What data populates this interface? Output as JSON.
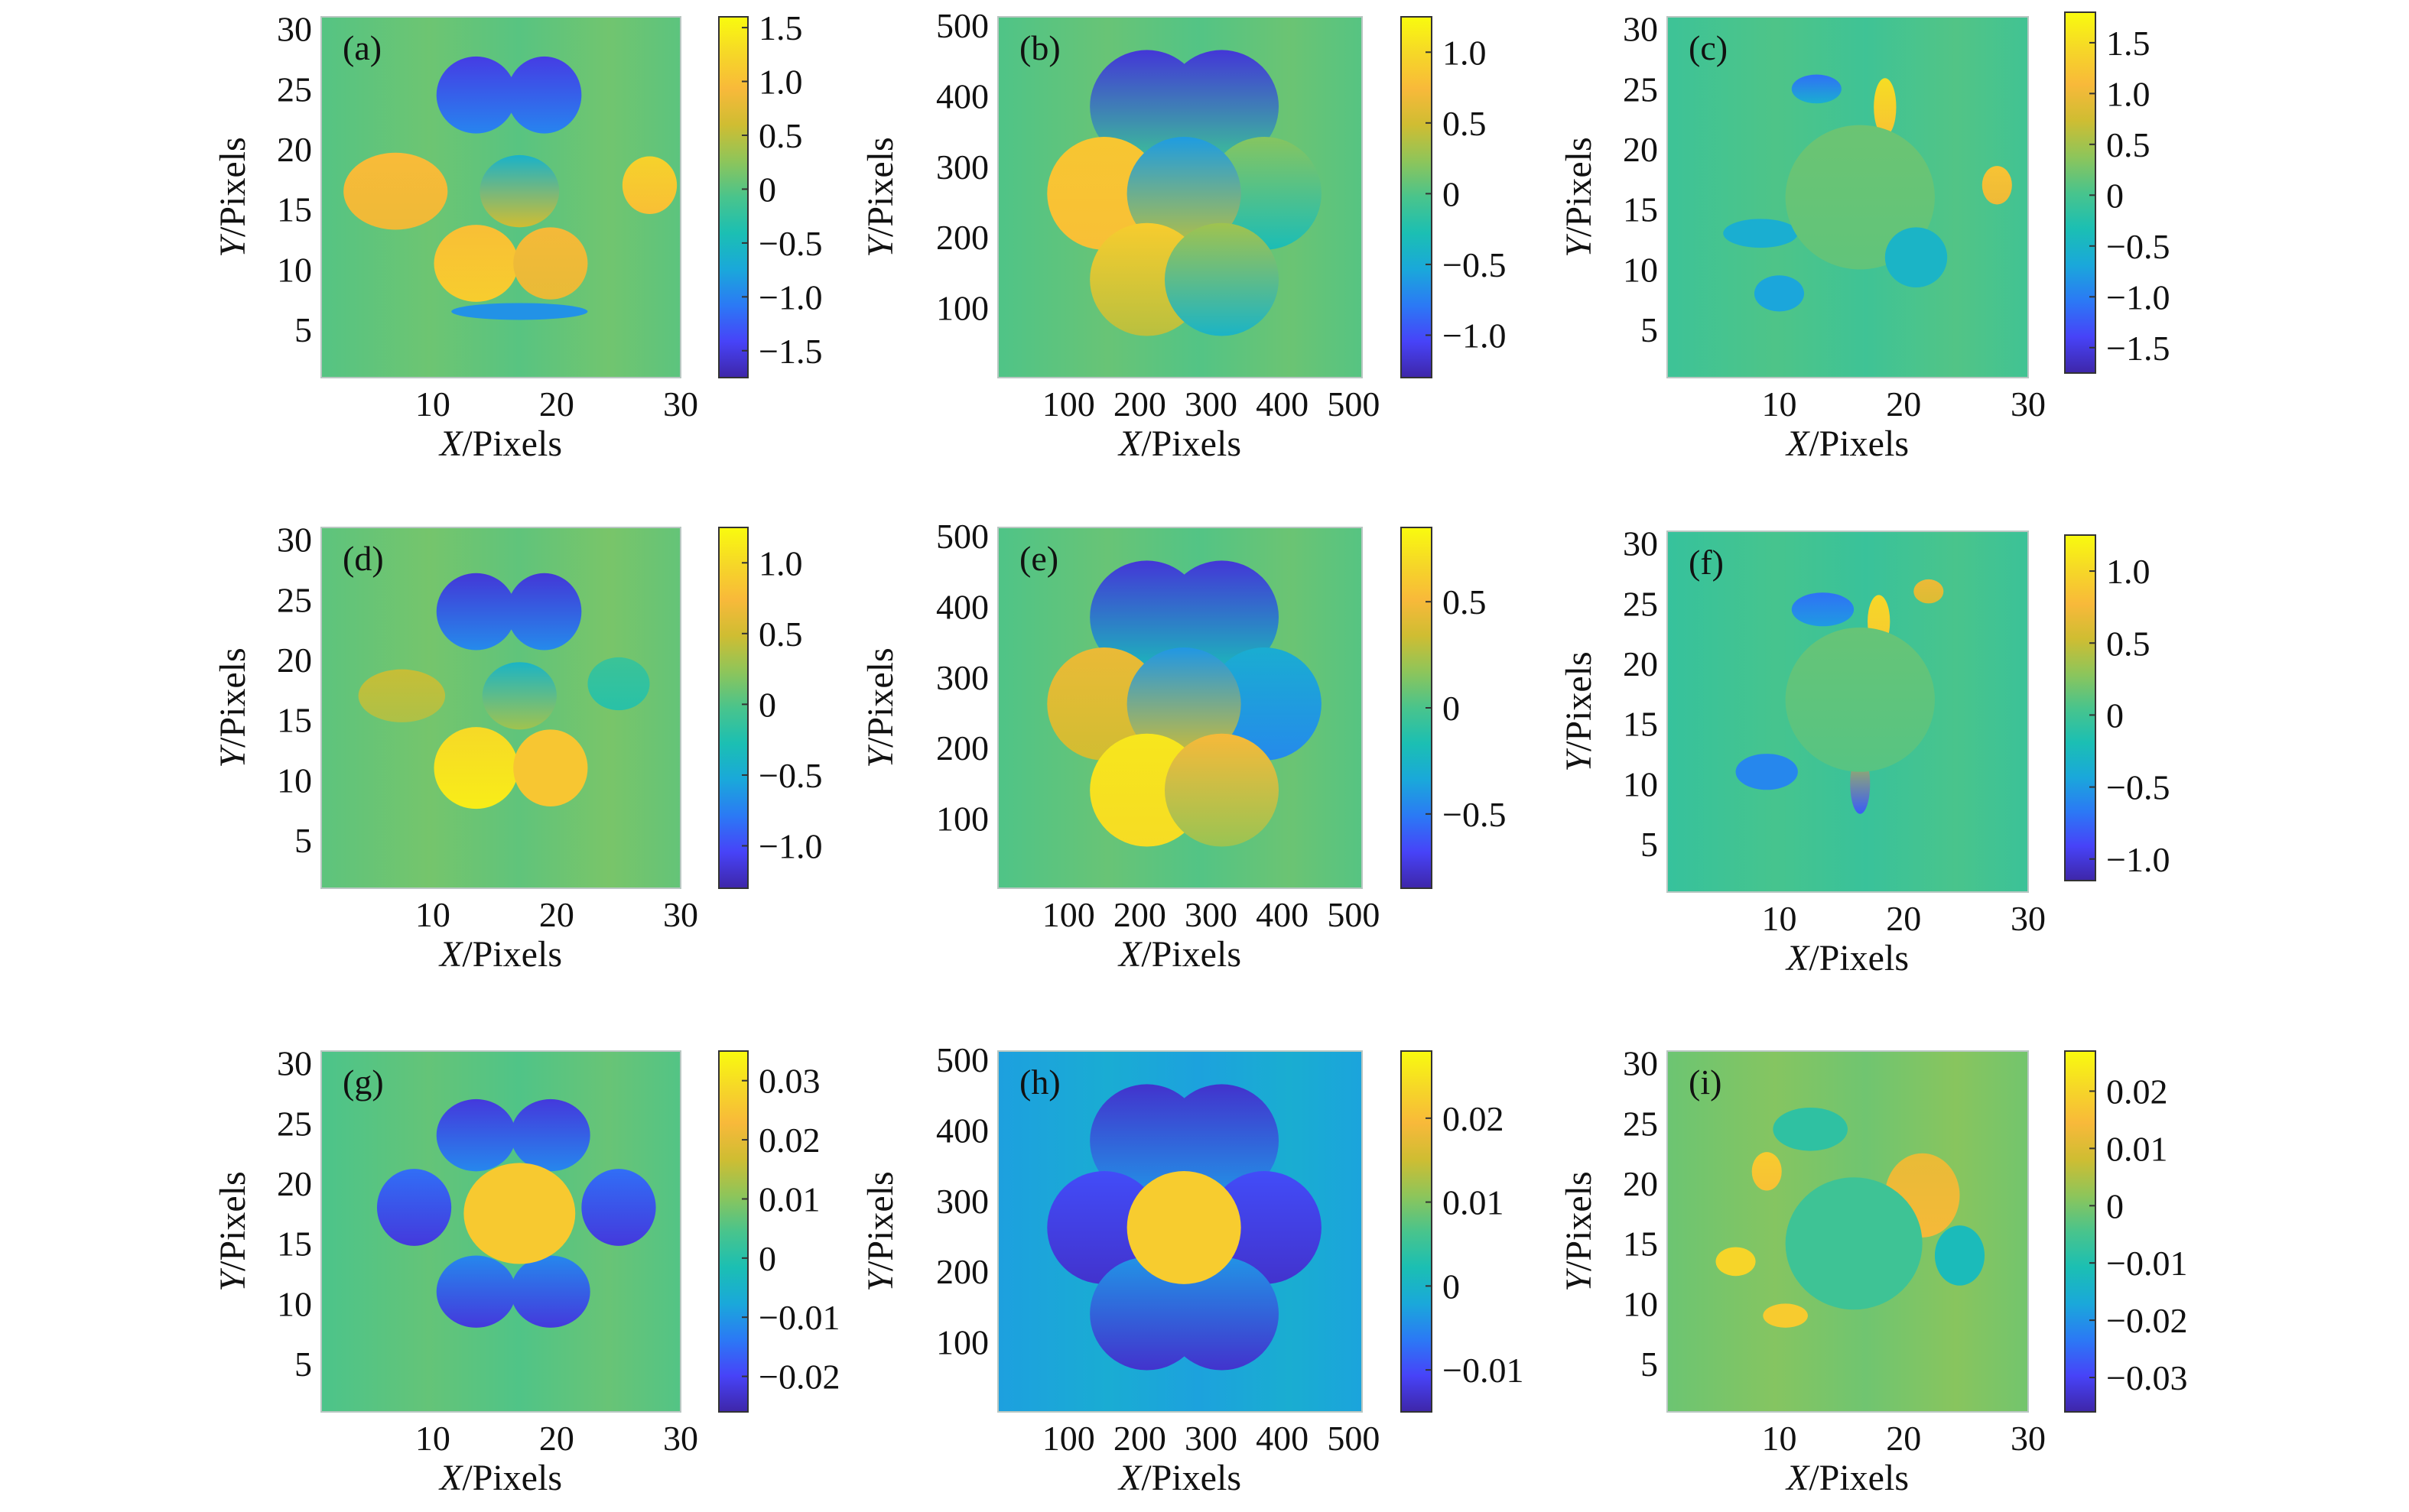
{
  "figure": {
    "colormap": "parula",
    "colormap_stops": [
      "#3e26a8",
      "#4743f8",
      "#2b79f5",
      "#1aa8da",
      "#1bbfb3",
      "#49c48c",
      "#8ec55a",
      "#cfbd32",
      "#f8b93a",
      "#f6d827",
      "#f9fb0e"
    ],
    "background_colors": {
      "interior_value_left_columns": 0.0,
      "description": "smooth colour fields with blob-shaped regions"
    }
  },
  "chart_data": [
    {
      "id": "a",
      "type": "heatmap",
      "panel_label": "(a)",
      "xlabel_var": "X",
      "xlabel_unit": "/Pixels",
      "ylabel_var": "Y",
      "ylabel_unit": "/Pixels",
      "xlim": [
        1,
        30
      ],
      "ylim": [
        1,
        31
      ],
      "x_ticks": [
        10,
        20,
        30
      ],
      "x_tick_labels": [
        "10",
        "20",
        "30"
      ],
      "y_ticks": [
        5,
        10,
        15,
        20,
        25,
        30
      ],
      "y_tick_labels": [
        "5",
        "10",
        "15",
        "20",
        "25",
        "30"
      ],
      "clim": [
        -1.75,
        1.6
      ],
      "colorbar_ticks": [
        1.5,
        1.0,
        0.5,
        0,
        -0.5,
        -1.0,
        -1.5
      ],
      "colorbar_tick_labels": [
        "1.5",
        "1.0",
        "0.5",
        "0",
        "−0.5",
        "−1.0",
        "−1.5"
      ],
      "background_value": 0.05,
      "blobs": [
        {
          "cx": 13.5,
          "cy": 24.5,
          "rx": 3.2,
          "ry": 3.2,
          "value_top": -1.5,
          "value_bottom": -1.0
        },
        {
          "cx": 19.0,
          "cy": 24.5,
          "rx": 3.0,
          "ry": 3.2,
          "value_top": -1.5,
          "value_bottom": -1.0
        },
        {
          "cx": 7.0,
          "cy": 16.5,
          "rx": 4.2,
          "ry": 3.2,
          "value_top": 0.95,
          "value_bottom": 0.85
        },
        {
          "cx": 27.5,
          "cy": 17.0,
          "rx": 2.2,
          "ry": 2.4,
          "value_top": 1.2,
          "value_bottom": 1.0
        },
        {
          "cx": 13.5,
          "cy": 10.5,
          "rx": 3.4,
          "ry": 3.2,
          "value_top": 1.0,
          "value_bottom": 1.15
        },
        {
          "cx": 19.5,
          "cy": 10.5,
          "rx": 3.0,
          "ry": 3.0,
          "value_top": 0.9,
          "value_bottom": 0.8
        },
        {
          "cx": 17.0,
          "cy": 16.5,
          "rx": 3.2,
          "ry": 3.0,
          "value_top": -0.6,
          "value_bottom": 0.6
        },
        {
          "cx": 17.0,
          "cy": 6.5,
          "rx": 5.5,
          "ry": 0.7,
          "value_top": -0.9,
          "value_bottom": -0.9
        }
      ]
    },
    {
      "id": "b",
      "type": "heatmap",
      "panel_label": "(b)",
      "xlabel_var": "X",
      "xlabel_unit": "/Pixels",
      "ylabel_var": "Y",
      "ylabel_unit": "/Pixels",
      "xlim": [
        1,
        512
      ],
      "ylim": [
        1,
        512
      ],
      "x_ticks": [
        100,
        200,
        300,
        400,
        500
      ],
      "x_tick_labels": [
        "100",
        "200",
        "300",
        "400",
        "500"
      ],
      "y_ticks": [
        100,
        200,
        300,
        400,
        500
      ],
      "y_tick_labels": [
        "100",
        "200",
        "300",
        "400",
        "500"
      ],
      "clim": [
        -1.3,
        1.25
      ],
      "colorbar_ticks": [
        1.0,
        0.5,
        0,
        -0.5,
        -1.0
      ],
      "colorbar_tick_labels": [
        "1.0",
        "0.5",
        "0",
        "−0.5",
        "−1.0"
      ],
      "background_value": 0.05,
      "blobs": [
        {
          "cx": 210,
          "cy": 385,
          "rx": 80,
          "ry": 80,
          "value_top": -1.15,
          "value_bottom": -0.1
        },
        {
          "cx": 315,
          "cy": 385,
          "rx": 80,
          "ry": 80,
          "value_top": -1.15,
          "value_bottom": -0.1
        },
        {
          "cx": 150,
          "cy": 262,
          "rx": 80,
          "ry": 80,
          "value_top": 0.85,
          "value_bottom": 0.8
        },
        {
          "cx": 375,
          "cy": 262,
          "rx": 80,
          "ry": 80,
          "value_top": 0.2,
          "value_bottom": -0.3
        },
        {
          "cx": 262,
          "cy": 262,
          "rx": 80,
          "ry": 80,
          "value_top": -0.6,
          "value_bottom": 0.4
        },
        {
          "cx": 210,
          "cy": 140,
          "rx": 80,
          "ry": 80,
          "value_top": 0.9,
          "value_bottom": 0.4
        },
        {
          "cx": 315,
          "cy": 140,
          "rx": 80,
          "ry": 80,
          "value_top": 0.3,
          "value_bottom": -0.4
        }
      ]
    },
    {
      "id": "c",
      "type": "heatmap",
      "panel_label": "(c)",
      "xlabel_var": "X",
      "xlabel_unit": "/Pixels",
      "ylabel_var": "Y",
      "ylabel_unit": "/Pixels",
      "xlim": [
        1,
        30
      ],
      "ylim": [
        1,
        31
      ],
      "x_ticks": [
        10,
        20,
        30
      ],
      "x_tick_labels": [
        "10",
        "20",
        "30"
      ],
      "y_ticks": [
        5,
        10,
        15,
        20,
        25,
        30
      ],
      "y_tick_labels": [
        "5",
        "10",
        "15",
        "20",
        "25",
        "30"
      ],
      "clim": [
        -1.75,
        1.8
      ],
      "colorbar_ticks": [
        1.5,
        1.0,
        0.5,
        0,
        -0.5,
        -1.0,
        -1.5
      ],
      "colorbar_tick_labels": [
        "1.5",
        "1.0",
        "0.5",
        "0",
        "−0.5",
        "−1.0",
        "−1.5"
      ],
      "background_value": 0.0,
      "blobs": [
        {
          "cx": 13.0,
          "cy": 25.0,
          "rx": 2.0,
          "ry": 1.2,
          "value_top": -1.1,
          "value_bottom": -0.6
        },
        {
          "cx": 18.5,
          "cy": 23.5,
          "rx": 0.9,
          "ry": 2.4,
          "value_top": 1.5,
          "value_bottom": 1.2
        },
        {
          "cx": 27.5,
          "cy": 17.0,
          "rx": 1.2,
          "ry": 1.6,
          "value_top": 1.2,
          "value_bottom": 1.0
        },
        {
          "cx": 8.5,
          "cy": 13.0,
          "rx": 3.0,
          "ry": 1.2,
          "value_top": -0.6,
          "value_bottom": -0.6
        },
        {
          "cx": 10.0,
          "cy": 8.0,
          "rx": 2.0,
          "ry": 1.5,
          "value_top": -0.7,
          "value_bottom": -0.7
        },
        {
          "cx": 16.5,
          "cy": 16.0,
          "rx": 6.0,
          "ry": 6.0,
          "value_top": 0.2,
          "value_bottom": 0.15
        },
        {
          "cx": 21.0,
          "cy": 11.0,
          "rx": 2.5,
          "ry": 2.5,
          "value_top": -0.5,
          "value_bottom": -0.5
        }
      ]
    },
    {
      "id": "d",
      "type": "heatmap",
      "panel_label": "(d)",
      "xlabel_var": "X",
      "xlabel_unit": "/Pixels",
      "ylabel_var": "Y",
      "ylabel_unit": "/Pixels",
      "xlim": [
        1,
        30
      ],
      "ylim": [
        1,
        31
      ],
      "x_ticks": [
        10,
        20,
        30
      ],
      "x_tick_labels": [
        "10",
        "20",
        "30"
      ],
      "y_ticks": [
        5,
        10,
        15,
        20,
        25,
        30
      ],
      "y_tick_labels": [
        "5",
        "10",
        "15",
        "20",
        "25",
        "30"
      ],
      "clim": [
        -1.3,
        1.25
      ],
      "colorbar_ticks": [
        1.0,
        0.5,
        0,
        -0.5,
        -1.0
      ],
      "colorbar_tick_labels": [
        "1.0",
        "0.5",
        "0",
        "−0.5",
        "−1.0"
      ],
      "background_value": 0.1,
      "blobs": [
        {
          "cx": 13.5,
          "cy": 24.0,
          "rx": 3.2,
          "ry": 3.2,
          "value_top": -1.15,
          "value_bottom": -0.7
        },
        {
          "cx": 19.0,
          "cy": 24.0,
          "rx": 3.0,
          "ry": 3.2,
          "value_top": -1.15,
          "value_bottom": -0.7
        },
        {
          "cx": 7.5,
          "cy": 17.0,
          "rx": 3.5,
          "ry": 2.2,
          "value_top": 0.45,
          "value_bottom": 0.35
        },
        {
          "cx": 25.0,
          "cy": 18.0,
          "rx": 2.5,
          "ry": 2.2,
          "value_top": -0.1,
          "value_bottom": -0.2
        },
        {
          "cx": 13.5,
          "cy": 11.0,
          "rx": 3.4,
          "ry": 3.4,
          "value_top": 1.0,
          "value_bottom": 1.15
        },
        {
          "cx": 19.5,
          "cy": 11.0,
          "rx": 3.0,
          "ry": 3.2,
          "value_top": 0.85,
          "value_bottom": 0.85
        },
        {
          "cx": 17.0,
          "cy": 17.0,
          "rx": 3.0,
          "ry": 2.8,
          "value_top": -0.4,
          "value_bottom": 0.3
        }
      ]
    },
    {
      "id": "e",
      "type": "heatmap",
      "panel_label": "(e)",
      "xlabel_var": "X",
      "xlabel_unit": "/Pixels",
      "ylabel_var": "Y",
      "ylabel_unit": "/Pixels",
      "xlim": [
        1,
        512
      ],
      "ylim": [
        1,
        512
      ],
      "x_ticks": [
        100,
        200,
        300,
        400,
        500
      ],
      "x_tick_labels": [
        "100",
        "200",
        "300",
        "400",
        "500"
      ],
      "y_ticks": [
        100,
        200,
        300,
        400,
        500
      ],
      "y_tick_labels": [
        "100",
        "200",
        "300",
        "400",
        "500"
      ],
      "clim": [
        -0.85,
        0.85
      ],
      "colorbar_ticks": [
        0.5,
        0,
        -0.5
      ],
      "colorbar_tick_labels": [
        "0.5",
        "0",
        "−0.5"
      ],
      "background_value": 0.05,
      "blobs": [
        {
          "cx": 210,
          "cy": 385,
          "rx": 80,
          "ry": 80,
          "value_top": -0.75,
          "value_bottom": -0.2
        },
        {
          "cx": 315,
          "cy": 385,
          "rx": 80,
          "ry": 80,
          "value_top": -0.75,
          "value_bottom": -0.2
        },
        {
          "cx": 150,
          "cy": 262,
          "rx": 80,
          "ry": 80,
          "value_top": 0.45,
          "value_bottom": 0.35
        },
        {
          "cx": 375,
          "cy": 262,
          "rx": 80,
          "ry": 80,
          "value_top": -0.3,
          "value_bottom": -0.45
        },
        {
          "cx": 262,
          "cy": 262,
          "rx": 80,
          "ry": 80,
          "value_top": -0.4,
          "value_bottom": 0.35
        },
        {
          "cx": 210,
          "cy": 140,
          "rx": 80,
          "ry": 80,
          "value_top": 0.75,
          "value_bottom": 0.7
        },
        {
          "cx": 315,
          "cy": 140,
          "rx": 80,
          "ry": 80,
          "value_top": 0.5,
          "value_bottom": 0.2
        }
      ]
    },
    {
      "id": "f",
      "type": "heatmap",
      "panel_label": "(f)",
      "xlabel_var": "X",
      "xlabel_unit": "/Pixels",
      "ylabel_var": "Y",
      "ylabel_unit": "/Pixels",
      "xlim": [
        1,
        30
      ],
      "ylim": [
        1,
        31
      ],
      "x_ticks": [
        10,
        20,
        30
      ],
      "x_tick_labels": [
        "10",
        "20",
        "30"
      ],
      "y_ticks": [
        5,
        10,
        15,
        20,
        25,
        30
      ],
      "y_tick_labels": [
        "5",
        "10",
        "15",
        "20",
        "25",
        "30"
      ],
      "clim": [
        -1.15,
        1.25
      ],
      "colorbar_ticks": [
        1.0,
        0.5,
        0,
        -0.5,
        -1.0
      ],
      "colorbar_tick_labels": [
        "1.0",
        "0.5",
        "0",
        "−0.5",
        "−1.0"
      ],
      "background_value": 0.0,
      "blobs": [
        {
          "cx": 13.5,
          "cy": 24.5,
          "rx": 2.5,
          "ry": 1.4,
          "value_top": -0.7,
          "value_bottom": -0.5
        },
        {
          "cx": 18.0,
          "cy": 23.5,
          "rx": 0.9,
          "ry": 2.2,
          "value_top": 1.0,
          "value_bottom": 0.9
        },
        {
          "cx": 22.0,
          "cy": 26.0,
          "rx": 1.2,
          "ry": 1.0,
          "value_top": 0.7,
          "value_bottom": 0.6
        },
        {
          "cx": 16.5,
          "cy": 10.0,
          "rx": 0.8,
          "ry": 2.5,
          "value_top": 0.4,
          "value_bottom": -0.8
        },
        {
          "cx": 9.0,
          "cy": 11.0,
          "rx": 2.5,
          "ry": 1.5,
          "value_top": -0.6,
          "value_bottom": -0.6
        },
        {
          "cx": 16.5,
          "cy": 17.0,
          "rx": 6.0,
          "ry": 6.0,
          "value_top": 0.15,
          "value_bottom": 0.1
        }
      ]
    },
    {
      "id": "g",
      "type": "heatmap",
      "panel_label": "(g)",
      "xlabel_var": "X",
      "xlabel_unit": "/Pixels",
      "ylabel_var": "Y",
      "ylabel_unit": "/Pixels",
      "xlim": [
        1,
        30
      ],
      "ylim": [
        1,
        31
      ],
      "x_ticks": [
        10,
        20,
        30
      ],
      "x_tick_labels": [
        "10",
        "20",
        "30"
      ],
      "y_ticks": [
        5,
        10,
        15,
        20,
        25,
        30
      ],
      "y_tick_labels": [
        "5",
        "10",
        "15",
        "20",
        "25",
        "30"
      ],
      "clim": [
        -0.026,
        0.035
      ],
      "colorbar_ticks": [
        0.03,
        0.02,
        0.01,
        0,
        -0.01,
        -0.02
      ],
      "colorbar_tick_labels": [
        "0.03",
        "0.02",
        "0.01",
        "0",
        "−0.01",
        "−0.02"
      ],
      "background_value": 0.006,
      "blobs": [
        {
          "cx": 13.5,
          "cy": 24.0,
          "rx": 3.2,
          "ry": 3.0,
          "value_top": -0.022,
          "value_bottom": -0.012
        },
        {
          "cx": 19.5,
          "cy": 24.0,
          "rx": 3.2,
          "ry": 3.0,
          "value_top": -0.022,
          "value_bottom": -0.012
        },
        {
          "cx": 8.5,
          "cy": 18.0,
          "rx": 3.0,
          "ry": 3.2,
          "value_top": -0.015,
          "value_bottom": -0.022
        },
        {
          "cx": 25.0,
          "cy": 18.0,
          "rx": 3.0,
          "ry": 3.2,
          "value_top": -0.015,
          "value_bottom": -0.022
        },
        {
          "cx": 13.5,
          "cy": 11.0,
          "rx": 3.2,
          "ry": 3.0,
          "value_top": -0.012,
          "value_bottom": -0.022
        },
        {
          "cx": 19.5,
          "cy": 11.0,
          "rx": 3.2,
          "ry": 3.0,
          "value_top": -0.012,
          "value_bottom": -0.022
        },
        {
          "cx": 17.0,
          "cy": 17.5,
          "rx": 4.5,
          "ry": 4.2,
          "value_top": 0.026,
          "value_bottom": 0.026
        }
      ]
    },
    {
      "id": "h",
      "type": "heatmap",
      "panel_label": "(h)",
      "xlabel_var": "X",
      "xlabel_unit": "/Pixels",
      "ylabel_var": "Y",
      "ylabel_unit": "/Pixels",
      "xlim": [
        1,
        512
      ],
      "ylim": [
        1,
        512
      ],
      "x_ticks": [
        100,
        200,
        300,
        400,
        500
      ],
      "x_tick_labels": [
        "100",
        "200",
        "300",
        "400",
        "500"
      ],
      "y_ticks": [
        100,
        200,
        300,
        400,
        500
      ],
      "y_tick_labels": [
        "100",
        "200",
        "300",
        "400",
        "500"
      ],
      "clim": [
        -0.015,
        0.028
      ],
      "colorbar_ticks": [
        0.02,
        0.01,
        0,
        -0.01
      ],
      "colorbar_tick_labels": [
        "0.02",
        "0.01",
        "0",
        "−0.01"
      ],
      "background_value": -0.002,
      "blobs": [
        {
          "cx": 210,
          "cy": 385,
          "rx": 80,
          "ry": 80,
          "value_top": -0.013,
          "value_bottom": -0.004
        },
        {
          "cx": 315,
          "cy": 385,
          "rx": 80,
          "ry": 80,
          "value_top": -0.013,
          "value_bottom": -0.004
        },
        {
          "cx": 150,
          "cy": 262,
          "rx": 80,
          "ry": 80,
          "value_top": -0.01,
          "value_bottom": -0.013
        },
        {
          "cx": 375,
          "cy": 262,
          "rx": 80,
          "ry": 80,
          "value_top": -0.01,
          "value_bottom": -0.013
        },
        {
          "cx": 210,
          "cy": 140,
          "rx": 80,
          "ry": 80,
          "value_top": -0.004,
          "value_bottom": -0.013
        },
        {
          "cx": 315,
          "cy": 140,
          "rx": 80,
          "ry": 80,
          "value_top": -0.004,
          "value_bottom": -0.013
        },
        {
          "cx": 262,
          "cy": 262,
          "rx": 80,
          "ry": 80,
          "value_top": 0.022,
          "value_bottom": 0.022
        }
      ]
    },
    {
      "id": "i",
      "type": "heatmap",
      "panel_label": "(i)",
      "xlabel_var": "X",
      "xlabel_unit": "/Pixels",
      "ylabel_var": "Y",
      "ylabel_unit": "/Pixels",
      "xlim": [
        1,
        30
      ],
      "ylim": [
        1,
        31
      ],
      "x_ticks": [
        10,
        20,
        30
      ],
      "x_tick_labels": [
        "10",
        "20",
        "30"
      ],
      "y_ticks": [
        5,
        10,
        15,
        20,
        25,
        30
      ],
      "y_tick_labels": [
        "5",
        "10",
        "15",
        "20",
        "25",
        "30"
      ],
      "clim": [
        -0.036,
        0.027
      ],
      "colorbar_ticks": [
        0.02,
        0.01,
        0,
        -0.01,
        -0.02,
        -0.03
      ],
      "colorbar_tick_labels": [
        "0.02",
        "0.01",
        "0",
        "−0.01",
        "−0.02",
        "−0.03"
      ],
      "background_value": 0.0,
      "blobs": [
        {
          "cx": 12.5,
          "cy": 24.5,
          "rx": 3.0,
          "ry": 1.8,
          "value_top": -0.008,
          "value_bottom": -0.008
        },
        {
          "cx": 21.5,
          "cy": 19.0,
          "rx": 3.0,
          "ry": 3.5,
          "value_top": 0.012,
          "value_bottom": 0.014
        },
        {
          "cx": 9.0,
          "cy": 21.0,
          "rx": 1.2,
          "ry": 1.6,
          "value_top": 0.018,
          "value_bottom": 0.016
        },
        {
          "cx": 6.5,
          "cy": 13.5,
          "rx": 1.6,
          "ry": 1.2,
          "value_top": 0.02,
          "value_bottom": 0.02
        },
        {
          "cx": 10.5,
          "cy": 9.0,
          "rx": 1.8,
          "ry": 1.0,
          "value_top": 0.018,
          "value_bottom": 0.018
        },
        {
          "cx": 16.0,
          "cy": 15.0,
          "rx": 5.5,
          "ry": 5.5,
          "value_top": -0.006,
          "value_bottom": -0.006
        },
        {
          "cx": 24.5,
          "cy": 14.0,
          "rx": 2.0,
          "ry": 2.5,
          "value_top": -0.012,
          "value_bottom": -0.012
        }
      ]
    }
  ]
}
